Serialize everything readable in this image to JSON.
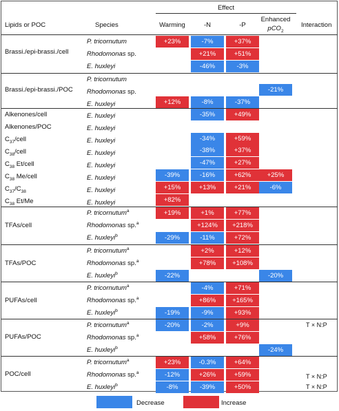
{
  "header": {
    "col_lipids": "Lipids or POC",
    "col_species": "Species",
    "effect": "Effect",
    "col_warming": "Warming",
    "col_minus_n": "-N",
    "col_minus_p": "-P",
    "col_enhanced_1": "Enhanced",
    "col_enhanced_2": "pCO",
    "col_enhanced_sub": "2",
    "col_interaction": "Interaction"
  },
  "labels": {
    "brassi_cell": "Brassi./epi-brassi./cell",
    "brassi_poc": "Brassi./epi-brassi./POC",
    "alkenones_cell": "Alkenones/cell",
    "alkenones_poc": "Alkenones/POC",
    "c37_cell_pre": "C",
    "c37_cell_sub": "37",
    "c37_cell_post": "/cell",
    "c38_cell_pre": "C",
    "c38_cell_sub": "38",
    "c38_cell_post": "/cell",
    "c38et_cell_pre": "C",
    "c38et_cell_sub": "38",
    "c38et_cell_post": " Et/cell",
    "c38me_cell_pre": "C",
    "c38me_cell_sub": "38",
    "c38me_cell_post": " Me/cell",
    "c37c38_a": "C",
    "c37c38_sub1": "37",
    "c37c38_b": "/C",
    "c37c38_sub2": "38",
    "c38etme_pre": "C",
    "c38etme_sub": "38",
    "c38etme_post": " Et/Me",
    "tfas_cell": "TFAs/cell",
    "tfas_poc": "TFAs/POC",
    "pufas_cell": "PUFAs/cell",
    "pufas_poc": "PUFAs/POC",
    "poc_cell": "POC/cell"
  },
  "species": {
    "pt": "P. tricornutum",
    "rh": "Rhodomonas",
    "rh_sp": " sp.",
    "eh": "E. huxleyi",
    "sup_a": "a",
    "sup_b": "b"
  },
  "cells": {
    "r1_w": "+23%",
    "r1_n": "-7%",
    "r1_p": "+37%",
    "r2_n": "+21%",
    "r2_p": "+51%",
    "r3_n": "-46%",
    "r3_p": "-3%",
    "r5_co2": "-21%",
    "r6_w": "+12%",
    "r6_n": "-8%",
    "r6_p": "-37%",
    "r7_n": "-35%",
    "r7_p": "+49%",
    "r9_n": "-34%",
    "r9_p": "+59%",
    "r10_n": "-38%",
    "r10_p": "+37%",
    "r11_n": "-47%",
    "r11_p": "+27%",
    "r12_w": "-39%",
    "r12_n": "-16%",
    "r12_p": "+62%",
    "r12_co2": "+25%",
    "r13_w": "+15%",
    "r13_n": "+13%",
    "r13_p": "+21%",
    "r13_co2": "-6%",
    "r14_w": "+82%",
    "r15_w": "+19%",
    "r15_n": "+1%",
    "r15_p": "+77%",
    "r16_n": "+124%",
    "r16_p": "+218%",
    "r17_w": "-29%",
    "r17_n": "-11%",
    "r17_p": "+72%",
    "r18_n": "+2%",
    "r18_p": "+12%",
    "r19_n": "+78%",
    "r19_p": "+108%",
    "r20_w": "-22%",
    "r20_co2": "-20%",
    "r21_n": "-4%",
    "r21_p": "+71%",
    "r22_n": "+86%",
    "r22_p": "+165%",
    "r23_w": "-19%",
    "r23_n": "-9%",
    "r23_p": "+93%",
    "r24_w": "-20%",
    "r24_n": "-2%",
    "r24_p": "+9%",
    "r25_n": "+58%",
    "r25_p": "+76%",
    "r26_co2": "-24%",
    "r27_w": "+23%",
    "r27_n": "-0.3%",
    "r27_p": "+64%",
    "r28_w": "-12%",
    "r28_n": "+26%",
    "r28_p": "+59%",
    "r29_w": "-8%",
    "r29_n": "-39%",
    "r29_p": "+50%"
  },
  "interaction": {
    "pufas_poc_pt": "T × N:P",
    "poc_rh": "T × N:P",
    "poc_eh": "T × N:P"
  },
  "legend": {
    "decrease": "Decrease",
    "increase": "Increase"
  },
  "colors": {
    "increase": "#e03238",
    "decrease": "#3a86e8"
  }
}
